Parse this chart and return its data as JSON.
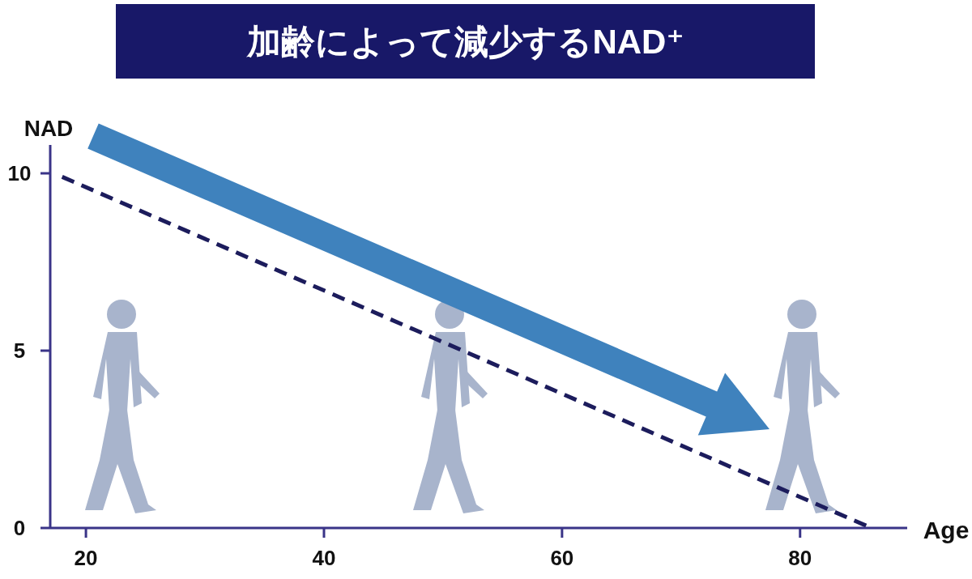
{
  "chart_data": {
    "type": "line",
    "title": "加齢によって減少するNAD⁺",
    "xlabel": "Age",
    "ylabel": "NAD",
    "x": [
      18,
      86
    ],
    "series": [
      {
        "color": "#1c1c5c",
        "values": [
          9.9,
          0
        ]
      }
    ],
    "line_style": "dashed",
    "xlim": [
      17,
      89
    ],
    "xticks": [
      20,
      40,
      60,
      80
    ],
    "ylim": [
      0,
      10.8
    ],
    "yticks": [
      0,
      5,
      10
    ]
  }
}
